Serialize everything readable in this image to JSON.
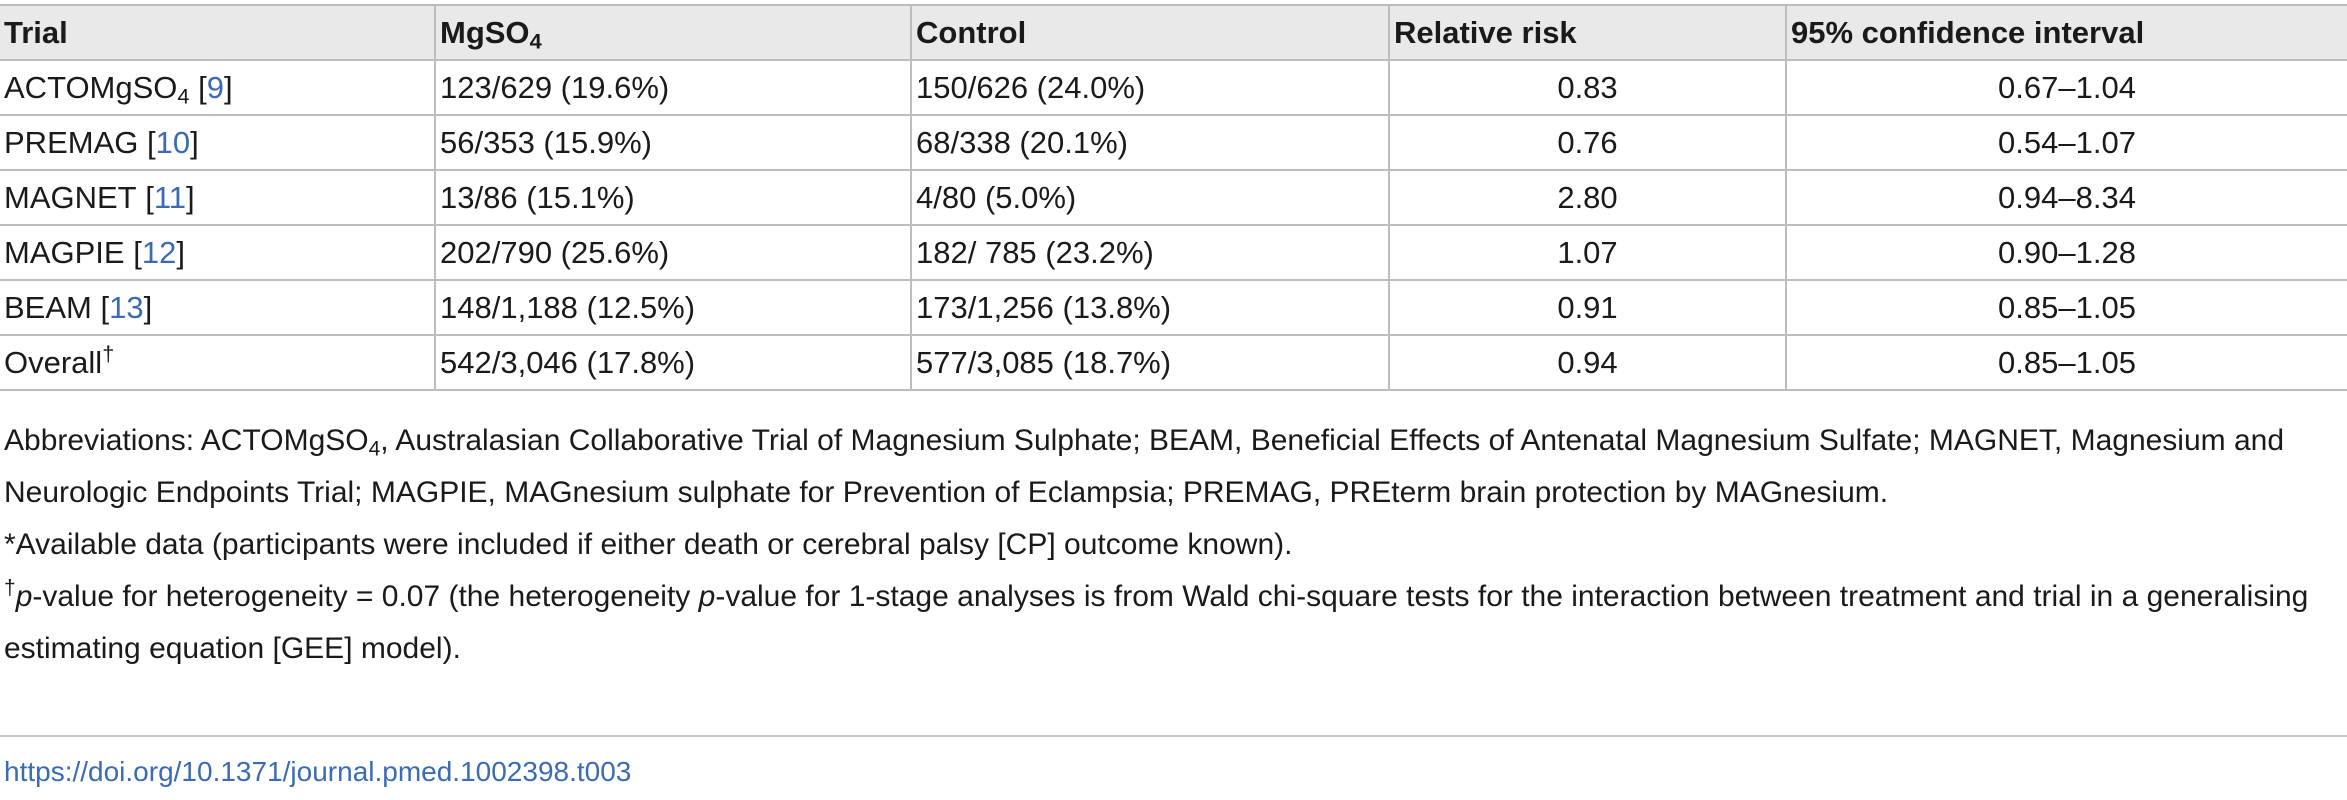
{
  "table": {
    "headers": {
      "trial": "Trial",
      "mgso_main": "MgSO",
      "mgso_sub": "4",
      "control": "Control",
      "rr": "Relative risk",
      "ci": "95% confidence interval"
    },
    "rows": [
      {
        "trial": "ACTOMgSO",
        "trial_sub": "4",
        "trial_pre": " [",
        "ref": "9",
        "trial_post": "]",
        "trial_sup": "",
        "mgso": "123/629 (19.6%)",
        "control": "150/626 (24.0%)",
        "rr": "0.83",
        "ci": "0.67–1.04"
      },
      {
        "trial": "PREMAG",
        "trial_sub": "",
        "trial_pre": " [",
        "ref": "10",
        "trial_post": "]",
        "trial_sup": "",
        "mgso": "56/353 (15.9%)",
        "control": "68/338 (20.1%)",
        "rr": "0.76",
        "ci": "0.54–1.07"
      },
      {
        "trial": "MAGNET",
        "trial_sub": "",
        "trial_pre": " [",
        "ref": "11",
        "trial_post": "]",
        "trial_sup": "",
        "mgso": "13/86 (15.1%)",
        "control": "4/80 (5.0%)",
        "rr": "2.80",
        "ci": "0.94–8.34"
      },
      {
        "trial": "MAGPIE",
        "trial_sub": "",
        "trial_pre": " [",
        "ref": "12",
        "trial_post": "]",
        "trial_sup": "",
        "mgso": "202/790 (25.6%)",
        "control": "182/ 785 (23.2%)",
        "rr": "1.07",
        "ci": "0.90–1.28"
      },
      {
        "trial": "BEAM",
        "trial_sub": "",
        "trial_pre": " [",
        "ref": "13",
        "trial_post": "]",
        "trial_sup": "",
        "mgso": "148/1,188 (12.5%)",
        "control": "173/1,256 (13.8%)",
        "rr": "0.91",
        "ci": "0.85–1.05"
      },
      {
        "trial": "Overall",
        "trial_sub": "",
        "trial_pre": "",
        "ref": "",
        "trial_post": "",
        "trial_sup": "†",
        "mgso": "542/3,046 (17.8%)",
        "control": "577/3,085 (18.7%)",
        "rr": "0.94",
        "ci": "0.85–1.05"
      }
    ]
  },
  "notes": {
    "abbr_a": "Abbreviations: ACTOMgSO",
    "abbr_sub": "4",
    "abbr_b": ", Australasian Collaborative Trial of Magnesium Sulphate; BEAM, Beneficial Effects of Antenatal Magnesium Sulfate; MAGNET, Magnesium and Neurologic Endpoints Trial; MAGPIE, MAGnesium sulphate for Prevention of Eclampsia; PREMAG, PREterm brain protection by MAGnesium.",
    "available": "*Available data (participants were included if either death or cerebral palsy [CP] outcome known).",
    "pv_sup": "†",
    "pv_p1": "p",
    "pv_a": "-value for heterogeneity = 0.07 (the heterogeneity ",
    "pv_p2": "p",
    "pv_b": "-value for 1-stage analyses is from Wald chi-square tests for the interaction between treatment and trial in a generalising estimating equation [GEE] model)."
  },
  "doi": "https://doi.org/10.1371/journal.pmed.1002398.t003",
  "colors": {
    "link": "#3b6bb3",
    "header_bg": "#e9e9e9",
    "rule": "#bdbdbd"
  }
}
